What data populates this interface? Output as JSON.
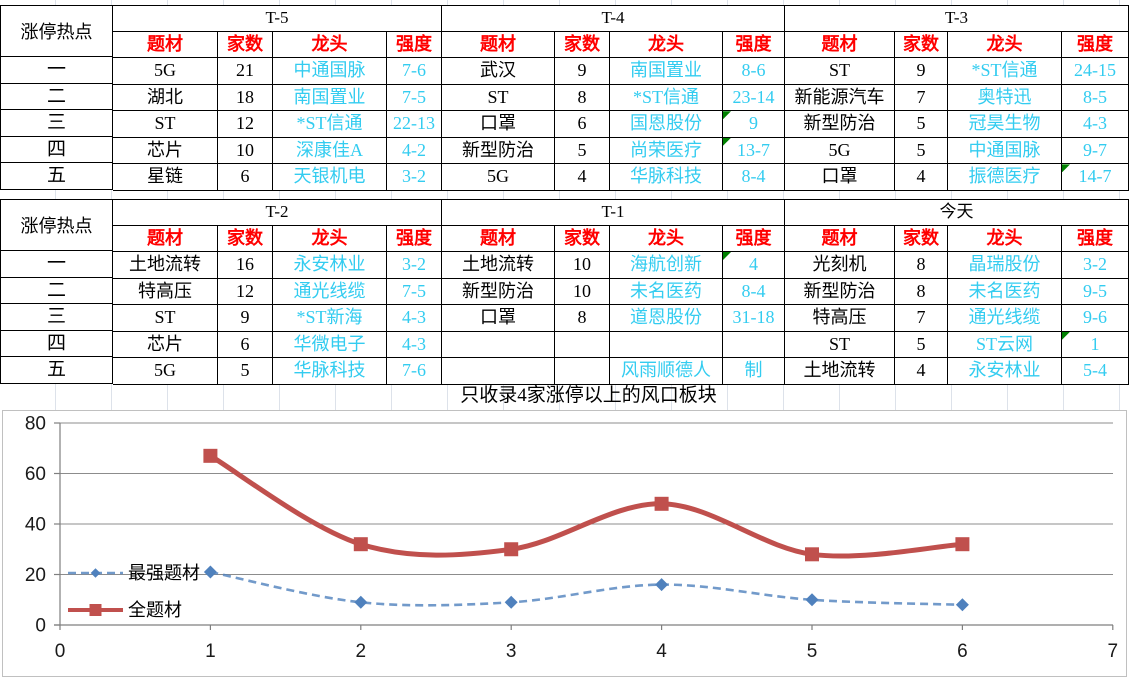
{
  "sheet": {
    "row_label_header": "涨停热点",
    "row_labels": [
      "一",
      "二",
      "三",
      "四",
      "五"
    ],
    "column_headers": [
      "题材",
      "家数",
      "龙头",
      "强度"
    ],
    "caption": "只收录4家涨停以上的风口板块",
    "bands": [
      {
        "blocks": [
          {
            "title": "T-5",
            "rows": [
              {
                "cells": [
                  "5G",
                  "21",
                  "中通国脉",
                  "7-6"
                ],
                "flag": false
              },
              {
                "cells": [
                  "湖北",
                  "18",
                  "南国置业",
                  "7-5"
                ],
                "flag": false
              },
              {
                "cells": [
                  "ST",
                  "12",
                  "*ST信通",
                  "22-13"
                ],
                "flag": false
              },
              {
                "cells": [
                  "芯片",
                  "10",
                  "深康佳A",
                  "4-2"
                ],
                "flag": false
              },
              {
                "cells": [
                  "星链",
                  "6",
                  "天银机电",
                  "3-2"
                ],
                "flag": false
              }
            ]
          },
          {
            "title": "T-4",
            "rows": [
              {
                "cells": [
                  "武汉",
                  "9",
                  "南国置业",
                  "8-6"
                ],
                "flag": false
              },
              {
                "cells": [
                  "ST",
                  "8",
                  "*ST信通",
                  "23-14"
                ],
                "flag": false
              },
              {
                "cells": [
                  "口罩",
                  "6",
                  "国恩股份",
                  "9"
                ],
                "flag": true
              },
              {
                "cells": [
                  "新型防治",
                  "5",
                  "尚荣医疗",
                  "13-7"
                ],
                "flag": true
              },
              {
                "cells": [
                  "5G",
                  "4",
                  "华脉科技",
                  "8-4"
                ],
                "flag": false
              }
            ]
          },
          {
            "title": "T-3",
            "rows": [
              {
                "cells": [
                  "ST",
                  "9",
                  "*ST信通",
                  "24-15"
                ],
                "flag": false
              },
              {
                "cells": [
                  "新能源汽车",
                  "7",
                  "奥特迅",
                  "8-5"
                ],
                "flag": false
              },
              {
                "cells": [
                  "新型防治",
                  "5",
                  "冠昊生物",
                  "4-3"
                ],
                "flag": false
              },
              {
                "cells": [
                  "5G",
                  "5",
                  "中通国脉",
                  "9-7"
                ],
                "flag": false
              },
              {
                "cells": [
                  "口罩",
                  "4",
                  "振德医疗",
                  "14-7"
                ],
                "flag": true
              }
            ]
          }
        ]
      },
      {
        "blocks": [
          {
            "title": "T-2",
            "rows": [
              {
                "cells": [
                  "土地流转",
                  "16",
                  "永安林业",
                  "3-2"
                ],
                "flag": false
              },
              {
                "cells": [
                  "特高压",
                  "12",
                  "通光线缆",
                  "7-5"
                ],
                "flag": false
              },
              {
                "cells": [
                  "ST",
                  "9",
                  "*ST新海",
                  "4-3"
                ],
                "flag": false
              },
              {
                "cells": [
                  "芯片",
                  "6",
                  "华微电子",
                  "4-3"
                ],
                "flag": false
              },
              {
                "cells": [
                  "5G",
                  "5",
                  "华脉科技",
                  "7-6"
                ],
                "flag": false
              }
            ]
          },
          {
            "title": "T-1",
            "rows": [
              {
                "cells": [
                  "土地流转",
                  "10",
                  "海航创新",
                  "4"
                ],
                "flag": true
              },
              {
                "cells": [
                  "新型防治",
                  "10",
                  "未名医药",
                  "8-4"
                ],
                "flag": false
              },
              {
                "cells": [
                  "口罩",
                  "8",
                  "道恩股份",
                  "31-18"
                ],
                "flag": false
              },
              {
                "cells": [
                  "",
                  "",
                  "",
                  ""
                ],
                "flag": false
              },
              {
                "cells": [
                  "",
                  "",
                  "风雨顺德人",
                  "制"
                ],
                "flag": false
              }
            ]
          },
          {
            "title": "今天",
            "rows": [
              {
                "cells": [
                  "光刻机",
                  "8",
                  "晶瑞股份",
                  "3-2"
                ],
                "flag": false
              },
              {
                "cells": [
                  "新型防治",
                  "8",
                  "未名医药",
                  "9-5"
                ],
                "flag": false
              },
              {
                "cells": [
                  "特高压",
                  "7",
                  "通光线缆",
                  "9-6"
                ],
                "flag": false
              },
              {
                "cells": [
                  "ST",
                  "5",
                  "ST云网",
                  "1"
                ],
                "flag": true
              },
              {
                "cells": [
                  "土地流转",
                  "4",
                  "永安林业",
                  "5-4"
                ],
                "flag": false
              }
            ]
          }
        ]
      }
    ]
  },
  "chart_data": {
    "type": "line",
    "x": [
      1,
      2,
      3,
      4,
      5,
      6
    ],
    "series": [
      {
        "name": "最强题材",
        "values": [
          21,
          9,
          9,
          16,
          10,
          8
        ],
        "color": "#4F81BD",
        "line_style": "dashed",
        "marker": "diamond"
      },
      {
        "name": "全题材",
        "values": [
          67,
          32,
          30,
          48,
          28,
          32
        ],
        "color": "#C0504D",
        "line_style": "solid",
        "marker": "square"
      }
    ],
    "xlim": [
      0,
      7
    ],
    "ylim": [
      0,
      80
    ],
    "xticks": [
      0,
      1,
      2,
      3,
      4,
      5,
      6,
      7
    ],
    "yticks": [
      0,
      20,
      40,
      60,
      80
    ],
    "grid": "horizontal",
    "smooth": true,
    "legend_position": "inside-left"
  },
  "colors": {
    "header_red": "#FF0000",
    "link_cyan": "#33CCF0",
    "flag_green": "#008000",
    "series_blue": "#4F81BD",
    "series_red": "#C0504D",
    "axis_gray": "#7F7F7F",
    "grid_gray": "#8C8C8C",
    "chart_border": "#C0C0C0"
  }
}
